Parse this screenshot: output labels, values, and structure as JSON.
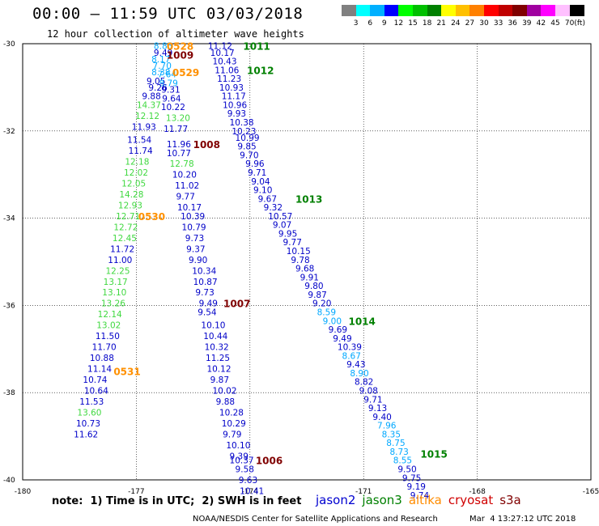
{
  "header": {
    "title": "00:00 – 11:59 UTC 03/03/2018",
    "subtitle": "12 hour collection of altimeter wave heights"
  },
  "colorbar": {
    "unit": "(ft)",
    "colors": [
      "#808080",
      "#00ffff",
      "#00b0ff",
      "#0000ff",
      "#00ff00",
      "#00c000",
      "#008000",
      "#ffff00",
      "#ffc000",
      "#ff8000",
      "#ff0000",
      "#c00000",
      "#800000",
      "#a000a0",
      "#ff00ff",
      "#ffc0ff",
      "#000000"
    ],
    "labels": [
      "3",
      "6",
      "9",
      "12",
      "15",
      "18",
      "21",
      "24",
      "27",
      "30",
      "33",
      "36",
      "39",
      "42",
      "45",
      "70"
    ]
  },
  "footer": {
    "note": "note:  1) Time is in UTC;  2) SWH is in feet",
    "credit": "NOAA/NESDIS Center for Satellite Applications and Research",
    "generated": "Mar  4 13:27:12 UTC 2018"
  },
  "legend": [
    {
      "name": "jason2",
      "color": "#0000d0"
    },
    {
      "name": "jason3",
      "color": "#008000"
    },
    {
      "name": "altika",
      "color": "#ff8c00"
    },
    {
      "name": "cryosat",
      "color": "#d00000"
    },
    {
      "name": "s3a",
      "color": "#800000"
    }
  ],
  "chart_data": {
    "type": "scatter",
    "xlim": [
      -180,
      -165
    ],
    "ylim": [
      -40,
      -30
    ],
    "x_ticks": [
      "-180",
      "-177",
      "-174",
      "-171",
      "-168",
      "-165"
    ],
    "y_ticks": [
      "-30",
      "-32",
      "-34",
      "-36",
      "-38",
      "-40"
    ],
    "grid": true,
    "colors": {
      "blue": "#0000c8",
      "cyan": "#00a8ff",
      "lightgreen": "#40d840",
      "green": "#008000",
      "orange": "#ff9000",
      "darkred": "#800000"
    },
    "points": [
      {
        "x": -176.54,
        "y": -30.05,
        "v": "8.85",
        "c": "cyan"
      },
      {
        "x": -176.54,
        "y": -30.2,
        "v": "9.49",
        "c": "blue"
      },
      {
        "x": -176.6,
        "y": -30.35,
        "v": "8.17",
        "c": "cyan"
      },
      {
        "x": -176.57,
        "y": -30.5,
        "v": "7.70",
        "c": "cyan"
      },
      {
        "x": -176.6,
        "y": -30.65,
        "v": "8.38",
        "c": "cyan"
      },
      {
        "x": -176.44,
        "y": -30.7,
        "v": "7.64",
        "c": "cyan"
      },
      {
        "x": -176.73,
        "y": -30.85,
        "v": "9.05",
        "c": "blue"
      },
      {
        "x": -176.4,
        "y": -30.9,
        "v": "8.79",
        "c": "cyan"
      },
      {
        "x": -176.68,
        "y": -31.0,
        "v": "9.26",
        "c": "blue"
      },
      {
        "x": -176.34,
        "y": -31.05,
        "v": "9.31",
        "c": "blue"
      },
      {
        "x": -176.85,
        "y": -31.2,
        "v": "9.88",
        "c": "blue"
      },
      {
        "x": -176.32,
        "y": -31.25,
        "v": "9.64",
        "c": "blue"
      },
      {
        "x": -176.99,
        "y": -31.4,
        "v": "14.37",
        "c": "lightgreen"
      },
      {
        "x": -176.35,
        "y": -31.45,
        "v": "10.22",
        "c": "blue"
      },
      {
        "x": -177.03,
        "y": -31.65,
        "v": "12.12",
        "c": "lightgreen"
      },
      {
        "x": -176.22,
        "y": -31.7,
        "v": "13.20",
        "c": "lightgreen"
      },
      {
        "x": -177.12,
        "y": -31.9,
        "v": "11.93",
        "c": "blue"
      },
      {
        "x": -176.28,
        "y": -31.95,
        "v": "11.77",
        "c": "blue"
      },
      {
        "x": -177.24,
        "y": -32.2,
        "v": "11.54",
        "c": "blue"
      },
      {
        "x": -176.2,
        "y": -32.3,
        "v": "11.96",
        "c": "blue"
      },
      {
        "x": -177.21,
        "y": -32.45,
        "v": "11.74",
        "c": "blue"
      },
      {
        "x": -176.2,
        "y": -32.5,
        "v": "10.77",
        "c": "blue"
      },
      {
        "x": -177.3,
        "y": -32.7,
        "v": "12.18",
        "c": "lightgreen"
      },
      {
        "x": -176.12,
        "y": -32.75,
        "v": "12.78",
        "c": "lightgreen"
      },
      {
        "x": -177.33,
        "y": -32.95,
        "v": "12.02",
        "c": "lightgreen"
      },
      {
        "x": -176.05,
        "y": -33.0,
        "v": "10.20",
        "c": "blue"
      },
      {
        "x": -177.39,
        "y": -33.2,
        "v": "12.05",
        "c": "lightgreen"
      },
      {
        "x": -175.98,
        "y": -33.25,
        "v": "11.02",
        "c": "blue"
      },
      {
        "x": -177.45,
        "y": -33.45,
        "v": "14.28",
        "c": "lightgreen"
      },
      {
        "x": -175.95,
        "y": -33.5,
        "v": "9.77",
        "c": "blue"
      },
      {
        "x": -177.48,
        "y": -33.7,
        "v": "12.93",
        "c": "lightgreen"
      },
      {
        "x": -175.92,
        "y": -33.75,
        "v": "10.17",
        "c": "blue"
      },
      {
        "x": -177.54,
        "y": -33.95,
        "v": "12.71",
        "c": "lightgreen"
      },
      {
        "x": -175.83,
        "y": -33.95,
        "v": "10.39",
        "c": "blue"
      },
      {
        "x": -177.6,
        "y": -34.2,
        "v": "12.72",
        "c": "lightgreen"
      },
      {
        "x": -175.8,
        "y": -34.2,
        "v": "10.79",
        "c": "blue"
      },
      {
        "x": -177.63,
        "y": -34.45,
        "v": "12.45",
        "c": "lightgreen"
      },
      {
        "x": -175.71,
        "y": -34.45,
        "v": "9.73",
        "c": "blue"
      },
      {
        "x": -177.69,
        "y": -34.7,
        "v": "11.72",
        "c": "blue"
      },
      {
        "x": -175.68,
        "y": -34.7,
        "v": "9.37",
        "c": "blue"
      },
      {
        "x": -177.75,
        "y": -34.95,
        "v": "11.00",
        "c": "blue"
      },
      {
        "x": -175.62,
        "y": -34.95,
        "v": "9.90",
        "c": "blue"
      },
      {
        "x": -177.81,
        "y": -35.2,
        "v": "12.25",
        "c": "lightgreen"
      },
      {
        "x": -175.53,
        "y": -35.2,
        "v": "10.34",
        "c": "blue"
      },
      {
        "x": -177.87,
        "y": -35.45,
        "v": "13.17",
        "c": "lightgreen"
      },
      {
        "x": -175.5,
        "y": -35.45,
        "v": "10.87",
        "c": "blue"
      },
      {
        "x": -177.9,
        "y": -35.7,
        "v": "13.10",
        "c": "lightgreen"
      },
      {
        "x": -175.44,
        "y": -35.7,
        "v": "9.73",
        "c": "blue"
      },
      {
        "x": -177.93,
        "y": -35.95,
        "v": "13.26",
        "c": "lightgreen"
      },
      {
        "x": -175.35,
        "y": -35.95,
        "v": "9.49",
        "c": "blue"
      },
      {
        "x": -178.02,
        "y": -36.2,
        "v": "12.14",
        "c": "lightgreen"
      },
      {
        "x": -175.38,
        "y": -36.15,
        "v": "9.54",
        "c": "blue"
      },
      {
        "x": -178.05,
        "y": -36.45,
        "v": "13.02",
        "c": "lightgreen"
      },
      {
        "x": -175.29,
        "y": -36.45,
        "v": "10.10",
        "c": "blue"
      },
      {
        "x": -178.08,
        "y": -36.7,
        "v": "11.50",
        "c": "blue"
      },
      {
        "x": -175.23,
        "y": -36.7,
        "v": "10.44",
        "c": "blue"
      },
      {
        "x": -178.17,
        "y": -36.95,
        "v": "11.70",
        "c": "blue"
      },
      {
        "x": -175.2,
        "y": -36.95,
        "v": "10.32",
        "c": "blue"
      },
      {
        "x": -178.23,
        "y": -37.2,
        "v": "10.88",
        "c": "blue"
      },
      {
        "x": -175.17,
        "y": -37.2,
        "v": "11.25",
        "c": "blue"
      },
      {
        "x": -178.29,
        "y": -37.45,
        "v": "11.14",
        "c": "blue"
      },
      {
        "x": -175.14,
        "y": -37.45,
        "v": "10.12",
        "c": "blue"
      },
      {
        "x": -178.41,
        "y": -37.7,
        "v": "10.74",
        "c": "blue"
      },
      {
        "x": -175.05,
        "y": -37.7,
        "v": "9.87",
        "c": "blue"
      },
      {
        "x": -178.38,
        "y": -37.95,
        "v": "10.64",
        "c": "blue"
      },
      {
        "x": -174.99,
        "y": -37.95,
        "v": "10.02",
        "c": "blue"
      },
      {
        "x": -178.5,
        "y": -38.2,
        "v": "11.53",
        "c": "blue"
      },
      {
        "x": -174.9,
        "y": -38.2,
        "v": "9.88",
        "c": "blue"
      },
      {
        "x": -178.56,
        "y": -38.45,
        "v": "13.60",
        "c": "lightgreen"
      },
      {
        "x": -174.81,
        "y": -38.45,
        "v": "10.28",
        "c": "blue"
      },
      {
        "x": -178.59,
        "y": -38.7,
        "v": "10.73",
        "c": "blue"
      },
      {
        "x": -174.75,
        "y": -38.7,
        "v": "10.29",
        "c": "blue"
      },
      {
        "x": -178.65,
        "y": -38.95,
        "v": "11.62",
        "c": "blue"
      },
      {
        "x": -174.72,
        "y": -38.95,
        "v": "9.79",
        "c": "blue"
      },
      {
        "x": -174.63,
        "y": -39.2,
        "v": "10.10",
        "c": "blue"
      },
      {
        "x": -174.54,
        "y": -39.45,
        "v": "9.39",
        "c": "blue"
      },
      {
        "x": -174.54,
        "y": -39.55,
        "v": "10.37",
        "c": "blue"
      },
      {
        "x": -174.39,
        "y": -39.75,
        "v": "9.58",
        "c": "blue"
      },
      {
        "x": -174.3,
        "y": -40.0,
        "v": "9.63",
        "c": "blue"
      },
      {
        "x": -174.27,
        "y": -40.25,
        "v": "10.41",
        "c": "blue"
      },
      {
        "x": -175.11,
        "y": -30.05,
        "v": "11.12",
        "c": "blue"
      },
      {
        "x": -175.05,
        "y": -30.2,
        "v": "10.17",
        "c": "blue"
      },
      {
        "x": -174.99,
        "y": -30.4,
        "v": "10.43",
        "c": "blue"
      },
      {
        "x": -174.93,
        "y": -30.6,
        "v": "11.06",
        "c": "blue"
      },
      {
        "x": -174.87,
        "y": -30.8,
        "v": "11.23",
        "c": "blue"
      },
      {
        "x": -174.81,
        "y": -31.0,
        "v": "10.93",
        "c": "blue"
      },
      {
        "x": -174.75,
        "y": -31.2,
        "v": "11.17",
        "c": "blue"
      },
      {
        "x": -174.72,
        "y": -31.4,
        "v": "10.96",
        "c": "blue"
      },
      {
        "x": -174.6,
        "y": -31.6,
        "v": "9.93",
        "c": "blue"
      },
      {
        "x": -174.54,
        "y": -31.8,
        "v": "10.38",
        "c": "blue"
      },
      {
        "x": -174.48,
        "y": -32.0,
        "v": "10.23",
        "c": "blue"
      },
      {
        "x": -174.39,
        "y": -32.15,
        "v": "10.99",
        "c": "blue"
      },
      {
        "x": -174.33,
        "y": -32.35,
        "v": "9.85",
        "c": "blue"
      },
      {
        "x": -174.27,
        "y": -32.55,
        "v": "9.70",
        "c": "blue"
      },
      {
        "x": -174.12,
        "y": -32.75,
        "v": "9.96",
        "c": "blue"
      },
      {
        "x": -174.06,
        "y": -32.95,
        "v": "9.71",
        "c": "blue"
      },
      {
        "x": -173.97,
        "y": -33.15,
        "v": "9.04",
        "c": "blue"
      },
      {
        "x": -173.91,
        "y": -33.35,
        "v": "9.10",
        "c": "blue"
      },
      {
        "x": -173.79,
        "y": -33.55,
        "v": "9.67",
        "c": "blue"
      },
      {
        "x": -173.64,
        "y": -33.75,
        "v": "9.32",
        "c": "blue"
      },
      {
        "x": -173.52,
        "y": -33.95,
        "v": "10.57",
        "c": "blue"
      },
      {
        "x": -173.4,
        "y": -34.15,
        "v": "9.07",
        "c": "blue"
      },
      {
        "x": -173.25,
        "y": -34.35,
        "v": "9.95",
        "c": "blue"
      },
      {
        "x": -173.13,
        "y": -34.55,
        "v": "9.77",
        "c": "blue"
      },
      {
        "x": -173.04,
        "y": -34.75,
        "v": "10.15",
        "c": "blue"
      },
      {
        "x": -172.92,
        "y": -34.95,
        "v": "9.78",
        "c": "blue"
      },
      {
        "x": -172.8,
        "y": -35.15,
        "v": "9.68",
        "c": "blue"
      },
      {
        "x": -172.68,
        "y": -35.35,
        "v": "9.91",
        "c": "blue"
      },
      {
        "x": -172.56,
        "y": -35.55,
        "v": "9.80",
        "c": "blue"
      },
      {
        "x": -172.47,
        "y": -35.75,
        "v": "9.87",
        "c": "blue"
      },
      {
        "x": -172.35,
        "y": -35.95,
        "v": "9.20",
        "c": "blue"
      },
      {
        "x": -172.23,
        "y": -36.15,
        "v": "8.59",
        "c": "cyan"
      },
      {
        "x": -172.08,
        "y": -36.35,
        "v": "9.00",
        "c": "cyan"
      },
      {
        "x": -171.93,
        "y": -36.55,
        "v": "9.69",
        "c": "blue"
      },
      {
        "x": -171.81,
        "y": -36.75,
        "v": "9.49",
        "c": "blue"
      },
      {
        "x": -171.69,
        "y": -36.95,
        "v": "10.39",
        "c": "blue"
      },
      {
        "x": -171.57,
        "y": -37.15,
        "v": "8.67",
        "c": "cyan"
      },
      {
        "x": -171.45,
        "y": -37.35,
        "v": "9.43",
        "c": "blue"
      },
      {
        "x": -171.36,
        "y": -37.55,
        "v": "8.90",
        "c": "cyan"
      },
      {
        "x": -171.24,
        "y": -37.75,
        "v": "8.82",
        "c": "blue"
      },
      {
        "x": -171.12,
        "y": -37.95,
        "v": "9.08",
        "c": "blue"
      },
      {
        "x": -171.0,
        "y": -38.15,
        "v": "9.71",
        "c": "blue"
      },
      {
        "x": -170.88,
        "y": -38.35,
        "v": "9.13",
        "c": "blue"
      },
      {
        "x": -170.76,
        "y": -38.55,
        "v": "9.40",
        "c": "blue"
      },
      {
        "x": -170.64,
        "y": -38.75,
        "v": "7.96",
        "c": "cyan"
      },
      {
        "x": -170.52,
        "y": -38.95,
        "v": "8.35",
        "c": "cyan"
      },
      {
        "x": -170.4,
        "y": -39.15,
        "v": "8.75",
        "c": "cyan"
      },
      {
        "x": -170.31,
        "y": -39.35,
        "v": "8.73",
        "c": "cyan"
      },
      {
        "x": -170.22,
        "y": -39.55,
        "v": "8.55",
        "c": "cyan"
      },
      {
        "x": -170.1,
        "y": -39.75,
        "v": "9.50",
        "c": "blue"
      },
      {
        "x": -169.98,
        "y": -39.95,
        "v": "9.75",
        "c": "blue"
      },
      {
        "x": -169.86,
        "y": -40.15,
        "v": "9.19",
        "c": "blue"
      },
      {
        "x": -169.77,
        "y": -40.35,
        "v": "9.74",
        "c": "blue"
      }
    ],
    "annotations": [
      {
        "x": -176.2,
        "y": -30.05,
        "v": "0528",
        "c": "orange"
      },
      {
        "x": -176.2,
        "y": -30.25,
        "v": "1009",
        "c": "darkred"
      },
      {
        "x": -176.05,
        "y": -30.65,
        "v": "0529",
        "c": "orange"
      },
      {
        "x": -174.18,
        "y": -30.05,
        "v": "1011",
        "c": "green"
      },
      {
        "x": -174.08,
        "y": -30.6,
        "v": "1012",
        "c": "green"
      },
      {
        "x": -175.5,
        "y": -32.3,
        "v": "1008",
        "c": "darkred"
      },
      {
        "x": -176.95,
        "y": -33.95,
        "v": "0530",
        "c": "orange"
      },
      {
        "x": -172.8,
        "y": -33.55,
        "v": "1013",
        "c": "green"
      },
      {
        "x": -174.7,
        "y": -35.95,
        "v": "1007",
        "c": "darkred"
      },
      {
        "x": -171.4,
        "y": -36.35,
        "v": "1014",
        "c": "green"
      },
      {
        "x": -177.6,
        "y": -37.5,
        "v": "0531",
        "c": "orange"
      },
      {
        "x": -173.85,
        "y": -39.55,
        "v": "1006",
        "c": "darkred"
      },
      {
        "x": -169.5,
        "y": -39.4,
        "v": "1015",
        "c": "green"
      }
    ]
  }
}
